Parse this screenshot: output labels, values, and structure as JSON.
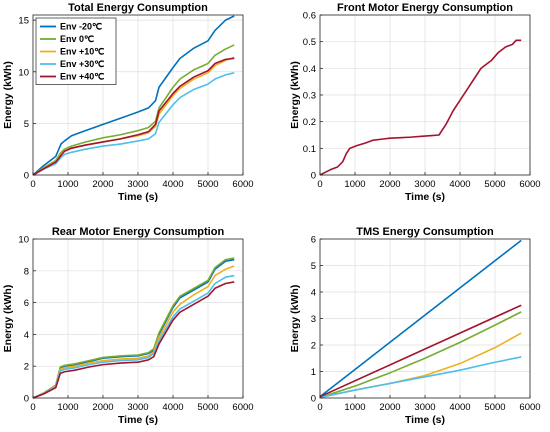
{
  "colors": {
    "env_m20": "#0072BD",
    "env_0": "#77AC30",
    "env_p10": "#EDB120",
    "env_p30": "#4DBEEE",
    "env_p40": "#A2142F",
    "front": "#A2142F"
  },
  "chart_data": [
    {
      "id": "total",
      "type": "line",
      "title": "Total Energy Consumption",
      "xlabel": "Time (s)",
      "ylabel": "Energy (kWh)",
      "xlim": [
        0,
        6000
      ],
      "ylim": [
        0,
        15.5
      ],
      "xticks": [
        0,
        1000,
        2000,
        3000,
        4000,
        5000,
        6000
      ],
      "yticks": [
        0,
        5,
        10,
        15
      ],
      "grid": true,
      "legend": "top-left",
      "series": [
        {
          "name": "Env -20℃",
          "color_key": "env_m20",
          "x": [
            0,
            300,
            650,
            800,
            900,
            1100,
            1500,
            2000,
            2500,
            3000,
            3300,
            3500,
            3600,
            4000,
            4200,
            4600,
            5000,
            5200,
            5500,
            5750
          ],
          "y": [
            0,
            0.9,
            1.8,
            3.0,
            3.3,
            3.8,
            4.3,
            4.9,
            5.5,
            6.1,
            6.5,
            7.2,
            8.5,
            10.4,
            11.3,
            12.3,
            13.0,
            14.0,
            15.0,
            15.4
          ]
        },
        {
          "name": "Env 0℃",
          "color_key": "env_0",
          "x": [
            0,
            300,
            650,
            800,
            900,
            1100,
            1500,
            2000,
            2500,
            3000,
            3300,
            3500,
            3600,
            4000,
            4200,
            4600,
            5000,
            5200,
            5500,
            5750
          ],
          "y": [
            0,
            0.7,
            1.4,
            2.2,
            2.5,
            2.8,
            3.2,
            3.6,
            3.9,
            4.3,
            4.6,
            5.2,
            6.5,
            8.5,
            9.3,
            10.2,
            10.8,
            11.6,
            12.2,
            12.6
          ]
        },
        {
          "name": "Env +10℃",
          "color_key": "env_p10",
          "x": [
            0,
            300,
            650,
            800,
            900,
            1100,
            1500,
            2000,
            2500,
            3000,
            3300,
            3500,
            3600,
            4000,
            4200,
            4600,
            5000,
            5200,
            5500,
            5750
          ],
          "y": [
            0,
            0.65,
            1.3,
            2.0,
            2.3,
            2.6,
            2.9,
            3.2,
            3.5,
            3.8,
            4.1,
            4.7,
            5.9,
            7.7,
            8.4,
            9.3,
            9.9,
            10.6,
            11.1,
            11.4
          ]
        },
        {
          "name": "Env +30℃",
          "color_key": "env_p30",
          "x": [
            0,
            300,
            650,
            800,
            900,
            1100,
            1500,
            2000,
            2500,
            3000,
            3300,
            3500,
            3600,
            4000,
            4200,
            4600,
            5000,
            5200,
            5500,
            5750
          ],
          "y": [
            0,
            0.55,
            1.1,
            1.7,
            2.0,
            2.2,
            2.5,
            2.8,
            3.0,
            3.3,
            3.5,
            4.0,
            5.1,
            6.8,
            7.5,
            8.3,
            8.8,
            9.3,
            9.7,
            9.9
          ]
        },
        {
          "name": "Env +40℃",
          "color_key": "env_p40",
          "x": [
            0,
            300,
            650,
            800,
            900,
            1100,
            1500,
            2000,
            2500,
            3000,
            3300,
            3500,
            3600,
            4000,
            4200,
            4600,
            5000,
            5200,
            5500,
            5750
          ],
          "y": [
            0,
            0.6,
            1.25,
            1.9,
            2.3,
            2.6,
            2.9,
            3.2,
            3.5,
            3.9,
            4.2,
            4.9,
            6.2,
            7.9,
            8.6,
            9.5,
            10.1,
            10.8,
            11.2,
            11.3
          ]
        }
      ]
    },
    {
      "id": "front",
      "type": "line",
      "title": "Front Motor Energy Consumption",
      "xlabel": "Time (s)",
      "ylabel": "Energy (kWh)",
      "xlim": [
        0,
        6000
      ],
      "ylim": [
        0,
        0.6
      ],
      "xticks": [
        0,
        1000,
        2000,
        3000,
        4000,
        5000,
        6000
      ],
      "yticks": [
        0,
        0.1,
        0.2,
        0.3,
        0.4,
        0.5,
        0.6
      ],
      "yticklabels": [
        "0",
        "0.1",
        "0.2",
        "0.3",
        "0.4",
        "0.5",
        "0.6"
      ],
      "grid": true,
      "series": [
        {
          "name": "",
          "color_key": "front",
          "x": [
            0,
            150,
            300,
            500,
            650,
            750,
            850,
            950,
            1050,
            1300,
            1500,
            1800,
            2000,
            2300,
            2600,
            2900,
            3200,
            3400,
            3600,
            3800,
            4000,
            4200,
            4400,
            4600,
            4700,
            4900,
            5100,
            5300,
            5500,
            5600,
            5750
          ],
          "y": [
            0,
            0.01,
            0.02,
            0.03,
            0.05,
            0.08,
            0.1,
            0.105,
            0.11,
            0.12,
            0.13,
            0.135,
            0.138,
            0.14,
            0.142,
            0.145,
            0.148,
            0.15,
            0.19,
            0.24,
            0.28,
            0.32,
            0.36,
            0.4,
            0.41,
            0.43,
            0.46,
            0.48,
            0.49,
            0.505,
            0.505
          ]
        }
      ]
    },
    {
      "id": "rear",
      "type": "line",
      "title": "Rear Motor Energy Consumption",
      "xlabel": "Time (s)",
      "ylabel": "Energy (kWh)",
      "xlim": [
        0,
        6000
      ],
      "ylim": [
        0,
        10
      ],
      "xticks": [
        0,
        1000,
        2000,
        3000,
        4000,
        5000,
        6000
      ],
      "yticks": [
        0,
        2,
        4,
        6,
        8,
        10
      ],
      "grid": true,
      "series": [
        {
          "name": "Env -20℃",
          "color_key": "env_m20",
          "x": [
            0,
            300,
            650,
            780,
            900,
            1200,
            1600,
            2000,
            2500,
            3000,
            3300,
            3450,
            3600,
            4000,
            4200,
            4600,
            5000,
            5200,
            5500,
            5750
          ],
          "y": [
            0,
            0.3,
            0.8,
            1.9,
            2.0,
            2.1,
            2.3,
            2.5,
            2.6,
            2.65,
            2.8,
            3.0,
            4.0,
            5.7,
            6.3,
            6.8,
            7.3,
            8.1,
            8.6,
            8.7
          ]
        },
        {
          "name": "Env 0℃",
          "color_key": "env_0",
          "x": [
            0,
            300,
            650,
            780,
            900,
            1200,
            1600,
            2000,
            2500,
            3000,
            3300,
            3450,
            3600,
            4000,
            4200,
            4600,
            5000,
            5200,
            5500,
            5750
          ],
          "y": [
            0,
            0.3,
            0.8,
            1.95,
            2.05,
            2.15,
            2.35,
            2.55,
            2.65,
            2.7,
            2.85,
            3.1,
            4.1,
            5.8,
            6.4,
            6.9,
            7.4,
            8.2,
            8.7,
            8.8
          ]
        },
        {
          "name": "Env +10℃",
          "color_key": "env_p10",
          "x": [
            0,
            300,
            650,
            780,
            900,
            1200,
            1600,
            2000,
            2500,
            3000,
            3300,
            3450,
            3600,
            4000,
            4200,
            4600,
            5000,
            5200,
            5500,
            5750
          ],
          "y": [
            0,
            0.28,
            0.75,
            1.8,
            1.9,
            2.0,
            2.2,
            2.35,
            2.45,
            2.5,
            2.65,
            2.9,
            3.8,
            5.4,
            5.9,
            6.5,
            7.0,
            7.7,
            8.1,
            8.3
          ]
        },
        {
          "name": "Env +30℃",
          "color_key": "env_p30",
          "x": [
            0,
            300,
            650,
            780,
            900,
            1200,
            1600,
            2000,
            2500,
            3000,
            3300,
            3450,
            3600,
            4000,
            4200,
            4600,
            5000,
            5200,
            5500,
            5750
          ],
          "y": [
            0,
            0.27,
            0.7,
            1.7,
            1.8,
            1.9,
            2.1,
            2.25,
            2.35,
            2.4,
            2.55,
            2.8,
            3.6,
            5.1,
            5.6,
            6.1,
            6.6,
            7.2,
            7.6,
            7.7
          ]
        },
        {
          "name": "Env +40℃",
          "color_key": "env_p40",
          "x": [
            0,
            300,
            650,
            780,
            900,
            1200,
            1600,
            2000,
            2500,
            3000,
            3300,
            3450,
            3600,
            4000,
            4200,
            4600,
            5000,
            5200,
            5500,
            5750
          ],
          "y": [
            0,
            0.25,
            0.65,
            1.55,
            1.65,
            1.75,
            1.95,
            2.1,
            2.2,
            2.25,
            2.4,
            2.6,
            3.4,
            4.9,
            5.4,
            5.9,
            6.4,
            6.9,
            7.2,
            7.3
          ]
        }
      ]
    },
    {
      "id": "tms",
      "type": "line",
      "title": "TMS Energy Consumption",
      "xlabel": "Time (s)",
      "ylabel": "Energy (kWh)",
      "xlim": [
        0,
        6000
      ],
      "ylim": [
        0,
        6
      ],
      "xticks": [
        0,
        1000,
        2000,
        3000,
        4000,
        5000,
        6000
      ],
      "yticks": [
        0,
        1,
        2,
        3,
        4,
        5,
        6
      ],
      "grid": true,
      "series": [
        {
          "name": "Env -20℃",
          "color_key": "env_m20",
          "x": [
            0,
            5750
          ],
          "y": [
            0.05,
            5.95
          ]
        },
        {
          "name": "Env 0℃",
          "color_key": "env_0",
          "x": [
            0,
            1000,
            2000,
            3000,
            4000,
            5000,
            5750
          ],
          "y": [
            0.02,
            0.45,
            0.95,
            1.5,
            2.1,
            2.75,
            3.25
          ]
        },
        {
          "name": "Env +10℃",
          "color_key": "env_p10",
          "x": [
            0,
            1000,
            2000,
            3000,
            4000,
            5000,
            5750
          ],
          "y": [
            0.02,
            0.3,
            0.55,
            0.85,
            1.3,
            1.9,
            2.45
          ]
        },
        {
          "name": "Env +30℃",
          "color_key": "env_p30",
          "x": [
            0,
            1000,
            2000,
            3000,
            4000,
            5000,
            5750
          ],
          "y": [
            0.02,
            0.3,
            0.55,
            0.8,
            1.05,
            1.35,
            1.55
          ]
        },
        {
          "name": "Env +40℃",
          "color_key": "env_p40",
          "x": [
            0,
            5750
          ],
          "y": [
            0.05,
            3.5
          ]
        }
      ]
    }
  ]
}
